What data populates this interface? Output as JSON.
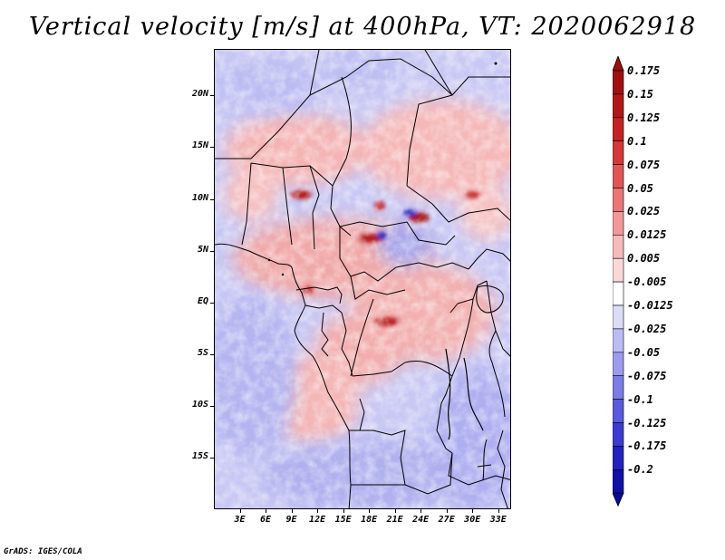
{
  "title": "Vertical velocity [m/s] at 400hPa, VT: 2020062918",
  "footer": "GrADS: IGES/COLA",
  "map": {
    "lat_range": [
      -20,
      24.5
    ],
    "lon_range": [
      0,
      34.5
    ],
    "lat_ticks": [
      {
        "value": 20,
        "label": "20N"
      },
      {
        "value": 15,
        "label": "15N"
      },
      {
        "value": 10,
        "label": "10N"
      },
      {
        "value": 5,
        "label": "5N"
      },
      {
        "value": 0,
        "label": "EQ"
      },
      {
        "value": -5,
        "label": "5S"
      },
      {
        "value": -10,
        "label": "10S"
      },
      {
        "value": -15,
        "label": "15S"
      }
    ],
    "lon_ticks": [
      {
        "value": 3,
        "label": "3E"
      },
      {
        "value": 6,
        "label": "6E"
      },
      {
        "value": 9,
        "label": "9E"
      },
      {
        "value": 12,
        "label": "12E"
      },
      {
        "value": 15,
        "label": "15E"
      },
      {
        "value": 18,
        "label": "18E"
      },
      {
        "value": 21,
        "label": "21E"
      },
      {
        "value": 24,
        "label": "24E"
      },
      {
        "value": 27,
        "label": "27E"
      },
      {
        "value": 30,
        "label": "30E"
      },
      {
        "value": 33,
        "label": "33E"
      }
    ]
  },
  "colorbar": {
    "levels": [
      {
        "label": "0.175",
        "color": "#a01010"
      },
      {
        "label": "0.15",
        "color": "#b01818"
      },
      {
        "label": "0.125",
        "color": "#c22424"
      },
      {
        "label": "0.1",
        "color": "#d43838"
      },
      {
        "label": "0.075",
        "color": "#e05656"
      },
      {
        "label": "0.05",
        "color": "#ea7676"
      },
      {
        "label": "0.025",
        "color": "#f29898"
      },
      {
        "label": "0.0125",
        "color": "#f7baba"
      },
      {
        "label": "0.005",
        "color": "#fbd8d8"
      },
      {
        "label": "-0.005",
        "color": "#ffffff"
      },
      {
        "label": "-0.0125",
        "color": "#dcdcf8"
      },
      {
        "label": "-0.025",
        "color": "#bcbcf4"
      },
      {
        "label": "-0.05",
        "color": "#9c9cee"
      },
      {
        "label": "-0.075",
        "color": "#7c7ce6"
      },
      {
        "label": "-0.1",
        "color": "#5a5adc"
      },
      {
        "label": "-0.125",
        "color": "#3c3cd0"
      },
      {
        "label": "-0.175",
        "color": "#2222bc"
      },
      {
        "label": "-0.2",
        "color": "#1010a6"
      }
    ],
    "top_color": "#9a1010",
    "bottom_color": "#0c0c9a"
  }
}
